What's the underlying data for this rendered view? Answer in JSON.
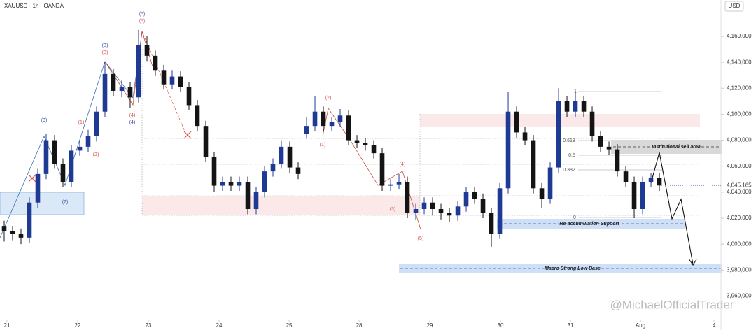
{
  "chart_data": {
    "type": "candlestick",
    "title": "XAUUSD · 1h · OANDA",
    "currency": "USD",
    "up_color": "#1f3a93",
    "down_color": "#141414",
    "x": [
      0,
      1,
      2,
      3,
      4,
      5,
      6,
      7,
      8,
      9,
      10,
      11,
      12,
      13,
      14,
      15,
      16,
      17,
      18,
      19,
      20,
      21,
      22,
      23,
      24,
      25,
      26,
      27,
      28,
      29,
      30,
      31,
      32,
      33,
      34,
      35,
      36,
      37,
      38,
      39,
      40,
      41,
      42,
      43,
      44,
      45,
      46,
      47,
      48,
      49,
      50,
      51,
      52,
      53,
      54,
      55,
      56,
      57,
      58,
      59,
      60,
      61,
      62,
      63,
      64,
      65,
      66,
      67,
      68,
      69,
      70,
      71,
      72,
      73,
      74,
      75,
      76,
      77,
      78
    ],
    "open": [
      4014000,
      4010000,
      4008000,
      4005000,
      4032000,
      4054000,
      4080000,
      4062000,
      4048000,
      4072000,
      4075000,
      4083000,
      4102000,
      4131000,
      4118000,
      4121000,
      4113000,
      4153000,
      4145000,
      4134000,
      4123000,
      4129000,
      4121000,
      4107000,
      4091000,
      4067000,
      4045000,
      4048000,
      4045000,
      4048000,
      4027000,
      4040000,
      4056000,
      4062000,
      4075000,
      4059000,
      4085000,
      4091000,
      4102000,
      4091000,
      4094000,
      4099000,
      4080000,
      4078000,
      4076000,
      4070000,
      4045000,
      4046000,
      4048000,
      4024000,
      4027000,
      4032000,
      4027000,
      4024000,
      4022000,
      4029000,
      4040000,
      4035000,
      4024000,
      4008000,
      4043000,
      4102000,
      4086000,
      4080000,
      4043000,
      4035000,
      4059000,
      4110000,
      4102000,
      4110000,
      4102000,
      4083000,
      4075000,
      4073000,
      4056000,
      4048000,
      4027000,
      4048000,
      4051000
    ],
    "high": [
      4018000,
      4014000,
      4012000,
      4036000,
      4058000,
      4085000,
      4084000,
      4066000,
      4076000,
      4080000,
      4088000,
      4106000,
      4140000,
      4135000,
      4126000,
      4125000,
      4165000,
      4160000,
      4149000,
      4138000,
      4134000,
      4133000,
      4125000,
      4111000,
      4095000,
      4071000,
      4052000,
      4052000,
      4052000,
      4052000,
      4044000,
      4060000,
      4066000,
      4080000,
      4079000,
      4063000,
      4098000,
      4114000,
      4106000,
      4098000,
      4104000,
      4103000,
      4084000,
      4082000,
      4080000,
      4074000,
      4050000,
      4054000,
      4052000,
      4031000,
      4036000,
      4036000,
      4031000,
      4028000,
      4033000,
      4044000,
      4044000,
      4039000,
      4028000,
      4047000,
      4117000,
      4106000,
      4090000,
      4084000,
      4047000,
      4063000,
      4120000,
      4114000,
      4118000,
      4114000,
      4106000,
      4087000,
      4079000,
      4077000,
      4060000,
      4052000,
      4052000,
      4055000,
      4055000
    ],
    "low": [
      4002000,
      4003000,
      4000000,
      4001000,
      4028000,
      4050000,
      4058000,
      4044000,
      4044000,
      4068000,
      4071000,
      4079000,
      4098000,
      4114000,
      4113000,
      4105000,
      4109000,
      4141000,
      4130000,
      4119000,
      4119000,
      4117000,
      4103000,
      4087000,
      4063000,
      4040000,
      4041000,
      4041000,
      4041000,
      4023000,
      4023000,
      4036000,
      4052000,
      4058000,
      4055000,
      4050000,
      4081000,
      4087000,
      4087000,
      4087000,
      4090000,
      4076000,
      4074000,
      4072000,
      4066000,
      4041000,
      4041000,
      4042000,
      4020000,
      4019000,
      4023000,
      4022000,
      4019000,
      4017000,
      4018000,
      4025000,
      4031000,
      4020000,
      3998000,
      4004000,
      4039000,
      4082000,
      4076000,
      4039000,
      4028000,
      4031000,
      4055000,
      4098000,
      4098000,
      4098000,
      4079000,
      4071000,
      4069000,
      4052000,
      4044000,
      4020000,
      4023000,
      4044000,
      4041000
    ],
    "close": [
      4010000,
      4008000,
      4005000,
      4032000,
      4054000,
      4080000,
      4062000,
      4048000,
      4072000,
      4075000,
      4083000,
      4102000,
      4131000,
      4118000,
      4121000,
      4113000,
      4153000,
      4145000,
      4134000,
      4123000,
      4129000,
      4121000,
      4107000,
      4091000,
      4067000,
      4045000,
      4048000,
      4045000,
      4048000,
      4027000,
      4040000,
      4056000,
      4062000,
      4075000,
      4059000,
      4054000,
      4091000,
      4102000,
      4091000,
      4094000,
      4099000,
      4080000,
      4078000,
      4076000,
      4070000,
      4045000,
      4046000,
      4048000,
      4024000,
      4027000,
      4032000,
      4027000,
      4024000,
      4022000,
      4029000,
      4040000,
      4035000,
      4024000,
      4008000,
      4043000,
      4102000,
      4086000,
      4080000,
      4043000,
      4035000,
      4059000,
      4110000,
      4102000,
      4110000,
      4102000,
      4083000,
      4075000,
      4073000,
      4056000,
      4048000,
      4027000,
      4048000,
      4051000,
      4045165
    ],
    "last_price_label": "4,045.165",
    "xlim": [
      -0.5,
      85.33
    ],
    "xticks": [
      {
        "value": 0.33,
        "label": "21"
      },
      {
        "value": 8.75,
        "label": "22"
      },
      {
        "value": 17.17,
        "label": "23"
      },
      {
        "value": 25.58,
        "label": "24"
      },
      {
        "value": 33.92,
        "label": "25"
      },
      {
        "value": 42.25,
        "label": "28"
      },
      {
        "value": 50.67,
        "label": "29"
      },
      {
        "value": 59.08,
        "label": "30"
      },
      {
        "value": 67.42,
        "label": "31"
      },
      {
        "value": 75.75,
        "label": "Aug"
      },
      {
        "value": 84.5,
        "label": "4"
      }
    ],
    "ylim": [
      3943000,
      4188000
    ],
    "yticks": [
      {
        "value": 3960000,
        "label": "3,960,000"
      },
      {
        "value": 3980000,
        "label": "3,980,000"
      },
      {
        "value": 4000000,
        "label": "4,000,000"
      },
      {
        "value": 4020000,
        "label": "4,020,000"
      },
      {
        "value": 4040000,
        "label": "4,040,000"
      },
      {
        "value": 4060000,
        "label": "4,060,000"
      },
      {
        "value": 4080000,
        "label": "4,080,000"
      },
      {
        "value": 4100000,
        "label": "4,100,000"
      },
      {
        "value": 4120000,
        "label": "4,120,000"
      },
      {
        "value": 4140000,
        "label": "4,140,000"
      },
      {
        "value": 4160000,
        "label": "4,160,000"
      }
    ],
    "annotations": [
      {
        "text": "(5)",
        "color": "#3b4fa8"
      },
      {
        "text": "(5)",
        "color": "#d9534f"
      },
      {
        "text": "(3)",
        "color": "#3b4fa8"
      },
      {
        "text": "(3)",
        "color": "#d9534f"
      },
      {
        "text": "(3)",
        "color": "#3b4fa8"
      },
      {
        "text": "(1)",
        "color": "#d9534f"
      },
      {
        "text": "(2)",
        "color": "#d9534f"
      },
      {
        "text": "(4)",
        "color": "#d9534f"
      },
      {
        "text": "(4)",
        "color": "#3b4fa8"
      },
      {
        "text": "(2)",
        "color": "#3b4fa8"
      },
      {
        "text": "(1)",
        "color": "#d9534f"
      },
      {
        "text": "(2)",
        "color": "#d9534f"
      },
      {
        "text": "(4)",
        "color": "#d9534f"
      },
      {
        "text": "(3)",
        "color": "#d9534f"
      },
      {
        "text": "(5)",
        "color": "#d9534f"
      },
      {
        "text": "1",
        "color": "#555555"
      },
      {
        "text": "0.618",
        "color": "#555555"
      },
      {
        "text": "0.5",
        "color": "#555555"
      },
      {
        "text": "0.382",
        "color": "#555555"
      },
      {
        "text": "0",
        "color": "#555555"
      }
    ],
    "zones": [
      "Institutional sell area",
      "Re-accumulation Support",
      "Macro Strong Low Base"
    ]
  },
  "watermark": "@MichaelOfficialTrader"
}
